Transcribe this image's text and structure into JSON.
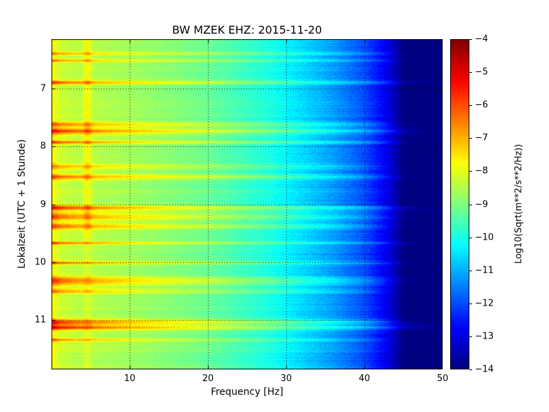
{
  "figure": {
    "background_color": "#ffffff",
    "text_color": "#000000"
  },
  "chart_data": {
    "type": "heatmap",
    "title": "BW MZEK EHZ: 2015-11-20",
    "xlabel": "Frequency [Hz]",
    "ylabel": "Lokalzeit (UTC + 1 Stunde)",
    "xlim": [
      0,
      50
    ],
    "ylim": [
      6.15,
      11.85
    ],
    "y_axis_direction": "time-increases-downward",
    "xticks": [
      10,
      20,
      30,
      40,
      50
    ],
    "yticks": [
      7,
      8,
      9,
      10,
      11
    ],
    "grid": {
      "style": "dotted",
      "color": "#000000",
      "on": true
    },
    "colormap": "jet",
    "value_range": [
      -14,
      -4
    ],
    "colorbar": {
      "label": "Log10(Sqrt(m**2/s**2/Hz))",
      "ticks": [
        {
          "value": -4,
          "label": "−4"
        },
        {
          "value": -5,
          "label": "−5"
        },
        {
          "value": -6,
          "label": "−6"
        },
        {
          "value": -7,
          "label": "−7"
        },
        {
          "value": -8,
          "label": "−8"
        },
        {
          "value": -9,
          "label": "−9"
        },
        {
          "value": -10,
          "label": "−10"
        },
        {
          "value": -11,
          "label": "−11"
        },
        {
          "value": -12,
          "label": "−12"
        },
        {
          "value": -13,
          "label": "−13"
        },
        {
          "value": -14,
          "label": "−14"
        }
      ]
    },
    "background_spectrum": {
      "freq_hz": [
        0.3,
        1.0,
        3.0,
        6.0,
        10.0,
        15.0,
        20.0,
        24.0,
        28.0,
        32.0,
        36.0,
        40.0,
        43.0,
        45.0,
        50.0
      ],
      "log10_amp": [
        -7.8,
        -8.2,
        -8.4,
        -8.5,
        -8.65,
        -8.9,
        -9.2,
        -9.6,
        -10.0,
        -10.6,
        -11.2,
        -12.0,
        -13.0,
        -14.0,
        -14.0
      ]
    },
    "persistent_tone": {
      "freq_hz": 4.6,
      "strength": 0.75,
      "fade_after_h": 9.6
    },
    "events": [
      {
        "time_h": 6.4,
        "strength": 0.55,
        "width_h": 0.018,
        "max_freq_hz": 43
      },
      {
        "time_h": 6.52,
        "strength": 0.75,
        "width_h": 0.015,
        "max_freq_hz": 44
      },
      {
        "time_h": 6.9,
        "strength": 0.95,
        "width_h": 0.022,
        "max_freq_hz": 45
      },
      {
        "time_h": 7.62,
        "strength": 0.75,
        "width_h": 0.03,
        "max_freq_hz": 43
      },
      {
        "time_h": 7.74,
        "strength": 1.1,
        "width_h": 0.038,
        "max_freq_hz": 45
      },
      {
        "time_h": 7.93,
        "strength": 0.95,
        "width_h": 0.02,
        "max_freq_hz": 44
      },
      {
        "time_h": 8.35,
        "strength": 0.6,
        "width_h": 0.03,
        "max_freq_hz": 41
      },
      {
        "time_h": 8.53,
        "strength": 0.85,
        "width_h": 0.032,
        "max_freq_hz": 43
      },
      {
        "time_h": 9.06,
        "strength": 1.15,
        "width_h": 0.028,
        "max_freq_hz": 45
      },
      {
        "time_h": 9.21,
        "strength": 0.9,
        "width_h": 0.045,
        "max_freq_hz": 43
      },
      {
        "time_h": 9.38,
        "strength": 0.85,
        "width_h": 0.038,
        "max_freq_hz": 42
      },
      {
        "time_h": 9.67,
        "strength": 1.0,
        "width_h": 0.018,
        "max_freq_hz": 45
      },
      {
        "time_h": 10.01,
        "strength": 0.85,
        "width_h": 0.018,
        "max_freq_hz": 45
      },
      {
        "time_h": 10.32,
        "strength": 0.95,
        "width_h": 0.055,
        "max_freq_hz": 43
      },
      {
        "time_h": 10.5,
        "strength": 0.75,
        "width_h": 0.028,
        "max_freq_hz": 42
      },
      {
        "time_h": 11.04,
        "strength": 1.15,
        "width_h": 0.038,
        "max_freq_hz": 45
      },
      {
        "time_h": 11.13,
        "strength": 1.3,
        "width_h": 0.025,
        "max_freq_hz": 46
      },
      {
        "time_h": 11.34,
        "strength": 0.8,
        "width_h": 0.018,
        "max_freq_hz": 43
      }
    ]
  }
}
